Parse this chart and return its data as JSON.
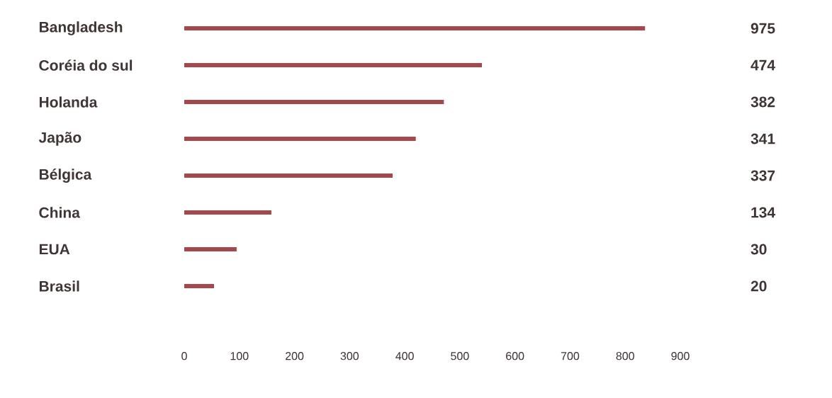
{
  "chart_data": {
    "type": "bar",
    "orientation": "horizontal",
    "categories": [
      "Bangladesh",
      "Coréia do sul",
      "Holanda",
      "Japão",
      "Bélgica",
      "China",
      "EUA",
      "Brasil"
    ],
    "values": [
      836,
      540,
      471,
      420,
      378,
      158,
      95,
      54
    ],
    "annotations": [
      "975",
      "474",
      "382",
      "341",
      "337",
      "134",
      "30",
      "20"
    ],
    "color": "#a5474c",
    "xlim": [
      0,
      900
    ],
    "xticks": [
      0,
      100,
      200,
      300,
      400,
      500,
      600,
      700,
      800,
      900
    ]
  }
}
